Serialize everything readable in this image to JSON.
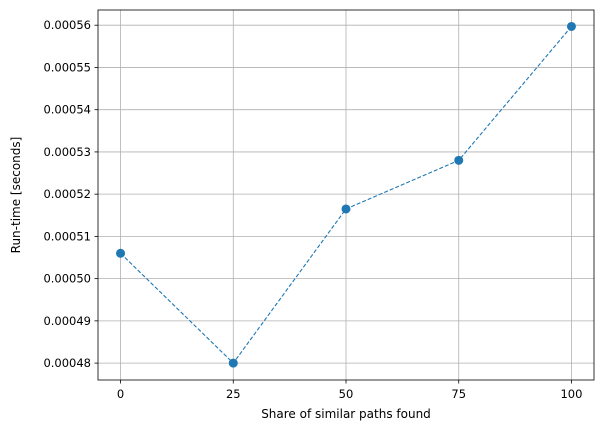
{
  "chart_data": {
    "type": "line",
    "title": "",
    "xlabel": "Share of similar paths found",
    "ylabel": "Run-time [seconds]",
    "x": [
      0,
      25,
      50,
      75,
      100
    ],
    "series": [
      {
        "values": [
          0.000506,
          0.00048,
          0.0005165,
          0.000528,
          0.0005597
        ]
      }
    ],
    "xticks": [
      0,
      25,
      50,
      75,
      100
    ],
    "xtick_labels": [
      "0",
      "25",
      "50",
      "75",
      "100"
    ],
    "yticks": [
      0.00048,
      0.00049,
      0.0005,
      0.00051,
      0.00052,
      0.00053,
      0.00054,
      0.00055,
      0.00056
    ],
    "ytick_labels": [
      "0.00048",
      "0.00049",
      "0.00050",
      "0.00051",
      "0.00052",
      "0.00053",
      "0.00054",
      "0.00055",
      "0.00056"
    ],
    "xlim": [
      -5,
      105
    ],
    "ylim": [
      0.000476,
      0.0005636
    ],
    "grid": true,
    "line_style": "dashed",
    "marker": "circle",
    "colors": {
      "series": "#1f77b4",
      "grid": "#b0b0b0",
      "axes": "#000000"
    }
  }
}
